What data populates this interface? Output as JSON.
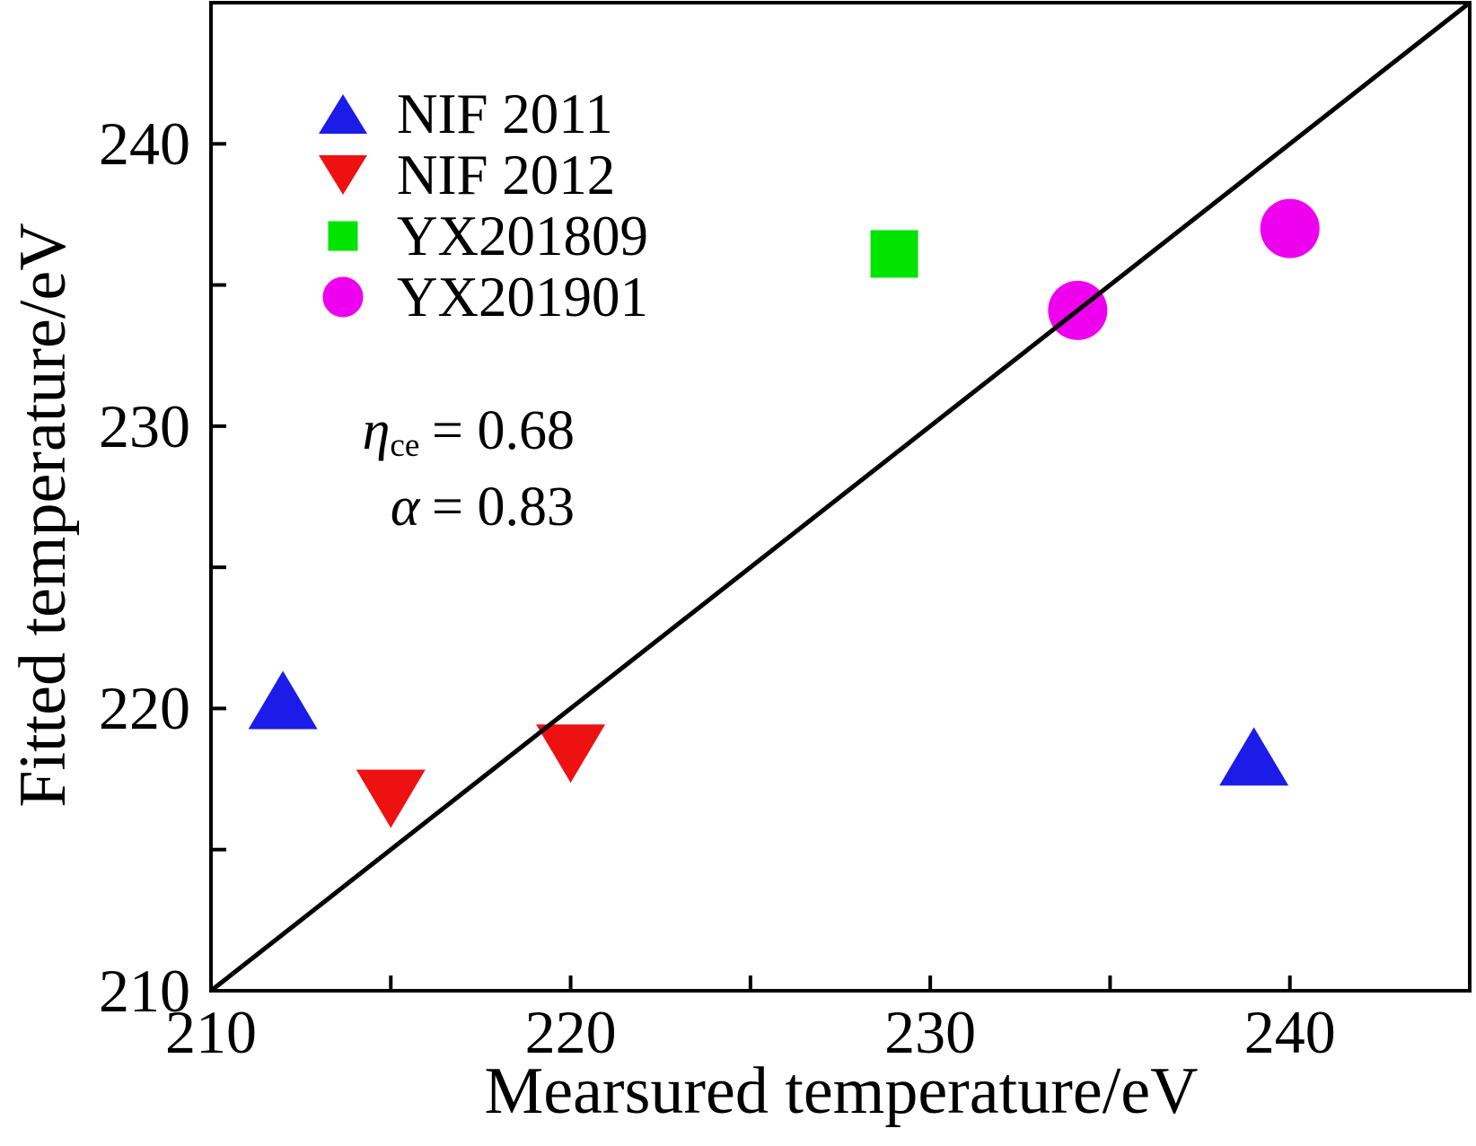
{
  "chart_data": {
    "type": "scatter",
    "title": "",
    "xlabel": "Mearsured temperature/eV",
    "ylabel": "Fitted temperature/eV",
    "xlim": [
      210,
      245
    ],
    "ylim": [
      210,
      245
    ],
    "xticks": [
      210,
      220,
      230,
      240
    ],
    "yticks": [
      210,
      220,
      230,
      240
    ],
    "xticks_minor": [
      215,
      225,
      235
    ],
    "yticks_minor": [
      215,
      225,
      235
    ],
    "grid": false,
    "legend_position": "upper left",
    "axis_color": "#000000",
    "series": [
      {
        "name": "NIF 2011",
        "marker": "triangle-up",
        "color": "#1c1ce8",
        "points": [
          [
            212,
            220.3
          ],
          [
            239,
            218.3
          ]
        ]
      },
      {
        "name": "NIF 2012",
        "marker": "triangle-down",
        "color": "#ee1111",
        "points": [
          [
            215,
            216.8
          ],
          [
            220,
            218.4
          ]
        ]
      },
      {
        "name": "YX201809",
        "marker": "square",
        "color": "#00e400",
        "points": [
          [
            229,
            236.1
          ]
        ]
      },
      {
        "name": "YX201901",
        "marker": "circle",
        "color": "#ee00ee",
        "points": [
          [
            234.1,
            234.1
          ],
          [
            240,
            237
          ]
        ]
      }
    ],
    "reference_line": {
      "type": "identity y=x",
      "x": [
        210,
        245
      ],
      "y": [
        210,
        245
      ],
      "color": "#000000"
    },
    "annotations": [
      "ηce = 0.68",
      "α = 0.83"
    ]
  },
  "annotation": {
    "line1": {
      "symbol": "η",
      "subscript": "ce",
      "value": "= 0.68"
    },
    "line2": {
      "symbol": "α",
      "subscript": "",
      "value": "= 0.83"
    }
  }
}
